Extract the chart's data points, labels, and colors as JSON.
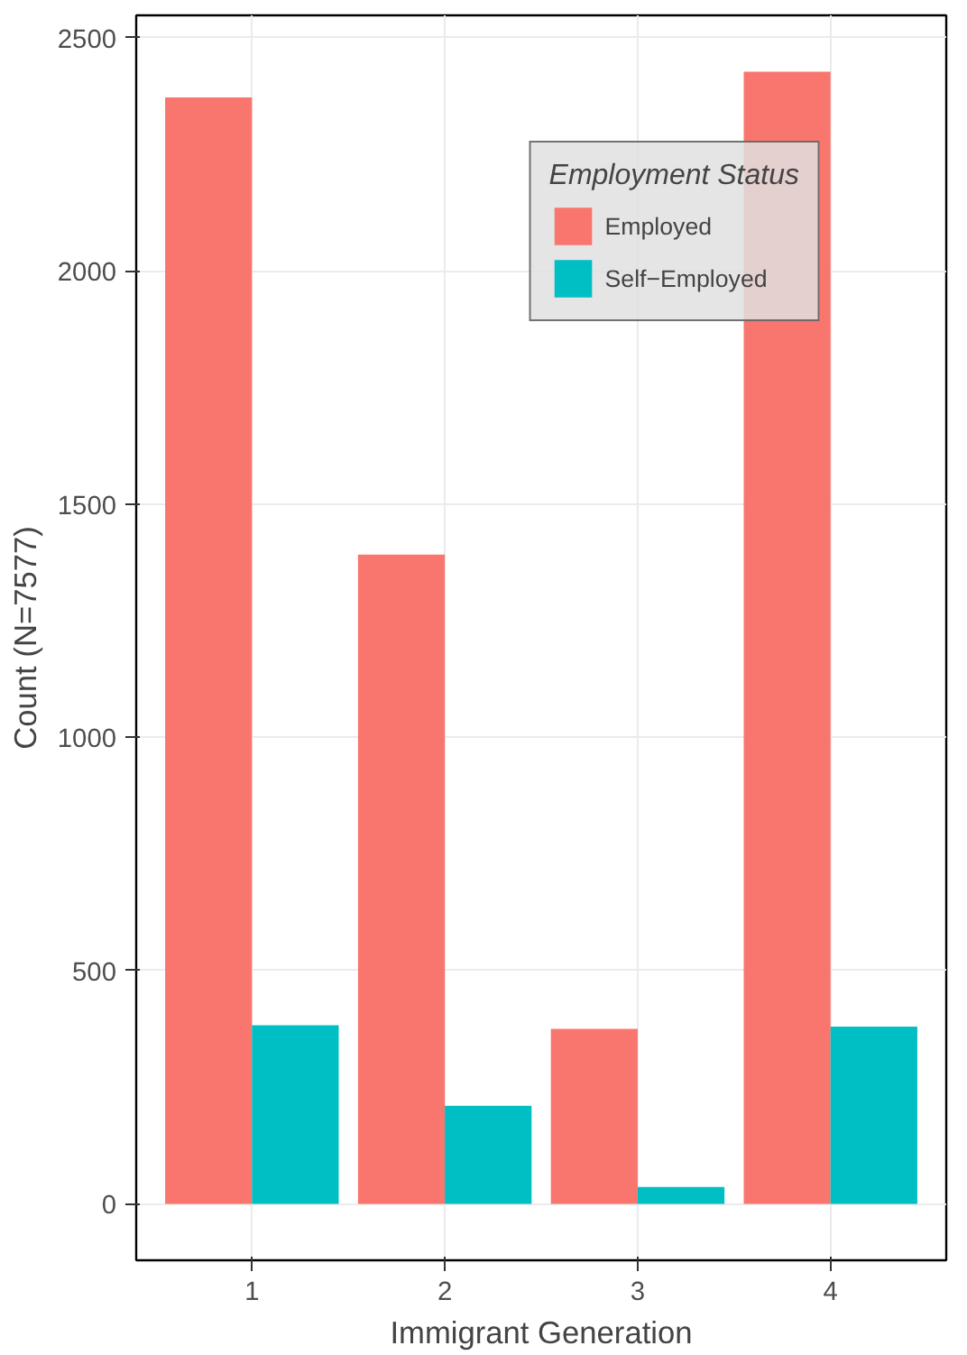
{
  "chart_data": {
    "type": "bar",
    "xlabel": "Immigrant Generation",
    "ylabel": "Count (N=7577)",
    "legend_title": "Employment Status",
    "categories": [
      "1",
      "2",
      "3",
      "4"
    ],
    "series": [
      {
        "name": "Employed",
        "color": "#f8766d",
        "values": [
          2372,
          1392,
          375,
          2427
        ]
      },
      {
        "name": "Self−Employed",
        "color": "#00bfc4",
        "values": [
          383,
          210,
          36,
          380
        ]
      }
    ],
    "ylim": [
      -121,
      2548
    ],
    "yticks": [
      0,
      500,
      1000,
      1500,
      2000,
      2500
    ],
    "grid": true,
    "legend": "top right"
  }
}
